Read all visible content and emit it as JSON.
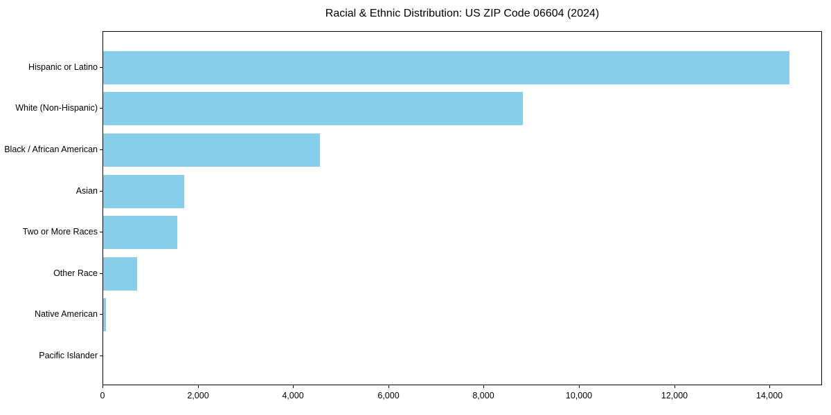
{
  "chart_data": {
    "type": "bar",
    "orientation": "horizontal",
    "title": "Racial & Ethnic Distribution: US ZIP Code 06604 (2024)",
    "categories": [
      "Hispanic or Latino",
      "White (Non-Hispanic)",
      "Black / African American",
      "Asian",
      "Two or More Races",
      "Other Race",
      "Native American",
      "Pacific Islander"
    ],
    "values": [
      14400,
      8800,
      4550,
      1700,
      1560,
      710,
      60,
      0
    ],
    "xlabel": "",
    "ylabel": "",
    "xlim": [
      0,
      15100
    ],
    "xticks": [
      0,
      2000,
      4000,
      6000,
      8000,
      10000,
      12000,
      14000
    ],
    "xtick_labels": [
      "0",
      "2,000",
      "4,000",
      "6,000",
      "8,000",
      "10,000",
      "12,000",
      "14,000"
    ],
    "bar_color": "#87CEEB",
    "background_color": "#ffffff",
    "grid": false,
    "legend": null
  }
}
